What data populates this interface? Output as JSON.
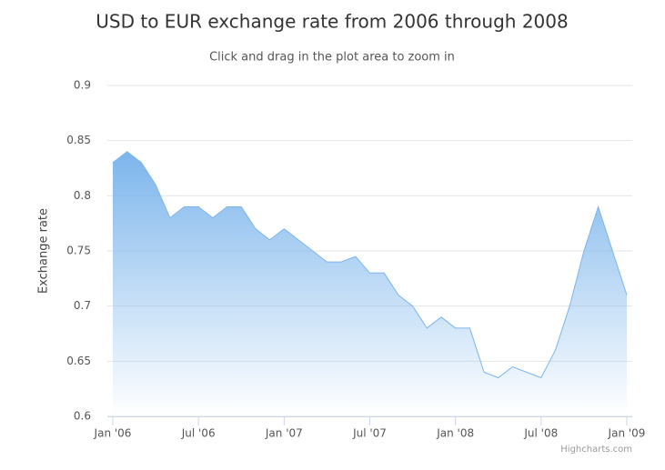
{
  "chart_data": {
    "type": "area",
    "title": "USD to EUR exchange rate from 2006 through 2008",
    "subtitle": "Click and drag in the plot area to zoom in",
    "y_label": "Exchange rate",
    "credits": "Highcharts.com",
    "x": [
      "2006-01",
      "2006-02",
      "2006-03",
      "2006-04",
      "2006-05",
      "2006-06",
      "2006-07",
      "2006-08",
      "2006-09",
      "2006-10",
      "2006-11",
      "2006-12",
      "2007-01",
      "2007-02",
      "2007-03",
      "2007-04",
      "2007-05",
      "2007-06",
      "2007-07",
      "2007-08",
      "2007-09",
      "2007-10",
      "2007-11",
      "2007-12",
      "2008-01",
      "2008-02",
      "2008-03",
      "2008-04",
      "2008-05",
      "2008-06",
      "2008-07",
      "2008-08",
      "2008-09",
      "2008-10",
      "2008-11",
      "2008-12",
      "2009-01"
    ],
    "series": [
      {
        "name": "USD to EUR",
        "color": "#7cb5ec",
        "values": [
          0.83,
          0.84,
          0.83,
          0.81,
          0.78,
          0.79,
          0.79,
          0.78,
          0.79,
          0.79,
          0.77,
          0.76,
          0.77,
          0.76,
          0.75,
          0.74,
          0.74,
          0.745,
          0.73,
          0.73,
          0.71,
          0.7,
          0.68,
          0.69,
          0.68,
          0.68,
          0.64,
          0.635,
          0.645,
          0.64,
          0.635,
          0.66,
          0.7,
          0.75,
          0.79,
          0.75,
          0.71
        ]
      }
    ],
    "xlim": [
      "2006-01",
      "2009-01"
    ],
    "xticks": [
      {
        "value": "2006-01",
        "label": "Jan '06"
      },
      {
        "value": "2006-07",
        "label": "Jul '06"
      },
      {
        "value": "2007-01",
        "label": "Jan '07"
      },
      {
        "value": "2007-07",
        "label": "Jul '07"
      },
      {
        "value": "2008-01",
        "label": "Jan '08"
      },
      {
        "value": "2008-07",
        "label": "Jul '08"
      },
      {
        "value": "2009-01",
        "label": "Jan '09"
      }
    ],
    "ylim": [
      0.6,
      0.9
    ],
    "yticks": [
      0.6,
      0.65,
      0.7,
      0.75,
      0.8,
      0.85,
      0.9
    ],
    "grid": true
  }
}
